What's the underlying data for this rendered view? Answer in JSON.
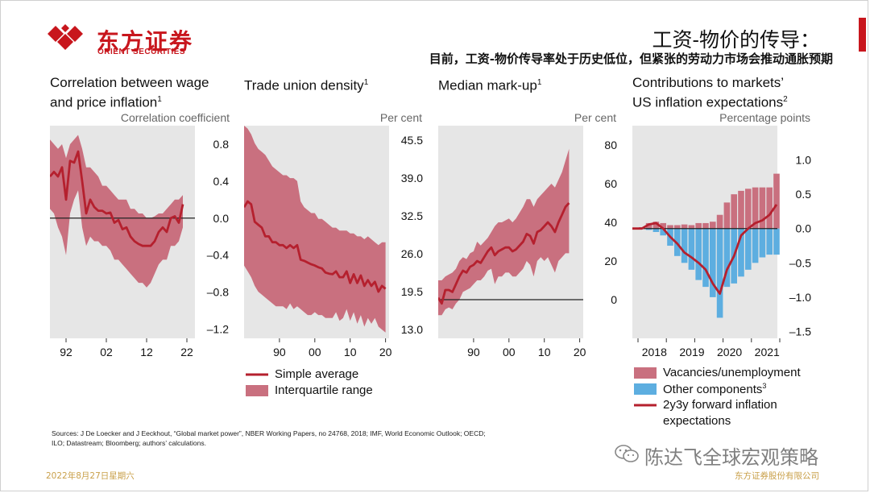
{
  "header": {
    "logo_cn": "东方证券",
    "logo_en": "ORIENT SECURITIES",
    "title": "工资-物价的传导：",
    "subtitle": "目前，工资-物价传导率处于历史低位，但紧张的劳动力市场会推动通胀预期"
  },
  "legends": {
    "mid": [
      "Simple average",
      "Interquartile range"
    ],
    "right": [
      "Vacancies/unemployment",
      "Other components",
      "2y3y forward inflation",
      "expectations"
    ],
    "right_sup": "3"
  },
  "footer": {
    "sources_line1": "Sources: J De Loecker and J Eeckhout, “Global market power”, NBER Working Papers, no 24768, 2018; IMF, World Economic Outlook; OECD;",
    "sources_line2": "ILO; Datastream; Bloomberg; authors’ calculations.",
    "date": "2022年8月27日星期六",
    "company": "东方证券股份有限公司",
    "watermark": "陈达飞全球宏观策略"
  },
  "colors": {
    "band": "#c9707f",
    "line": "#b5202e",
    "bar_blue": "#5daee0",
    "panel_bg": "#e6e6e6",
    "brand": "#c8161d"
  },
  "chart_data": [
    {
      "type": "line",
      "title": "Correlation between wage and price inflation",
      "title_lines": [
        "Correlation between wage",
        "and price inflation"
      ],
      "title_sup": "1",
      "unit": "Correlation coefficient",
      "ylim": [
        -1.3,
        1.0
      ],
      "yticks": [
        0.8,
        0.4,
        0.0,
        -0.4,
        -0.8,
        -1.2
      ],
      "ytick_labels": [
        "0.8",
        "0.4",
        "0.0",
        "–0.4",
        "–0.8",
        "–1.2"
      ],
      "xlim": [
        1988,
        2024
      ],
      "xticks": [
        1992,
        2002,
        2012,
        2022
      ],
      "xtick_labels": [
        "92",
        "02",
        "12",
        "22"
      ],
      "zero_line": 0,
      "x": [
        1988,
        1989,
        1990,
        1991,
        1992,
        1993,
        1994,
        1995,
        1996,
        1997,
        1998,
        1999,
        2000,
        2001,
        2002,
        2003,
        2004,
        2005,
        2006,
        2007,
        2008,
        2009,
        2010,
        2011,
        2012,
        2013,
        2014,
        2015,
        2016,
        2017,
        2018,
        2019,
        2020,
        2021
      ],
      "mean": [
        0.45,
        0.5,
        0.45,
        0.55,
        0.2,
        0.62,
        0.6,
        0.72,
        0.4,
        0.05,
        0.2,
        0.12,
        0.08,
        0.08,
        0.05,
        0.06,
        -0.05,
        -0.02,
        -0.12,
        -0.1,
        -0.2,
        -0.25,
        -0.28,
        -0.3,
        -0.3,
        -0.3,
        -0.25,
        -0.15,
        -0.1,
        -0.15,
        0.0,
        0.02,
        -0.05,
        0.15
      ],
      "upper": [
        0.85,
        0.8,
        0.75,
        0.8,
        0.65,
        0.8,
        0.85,
        0.9,
        0.75,
        0.55,
        0.55,
        0.5,
        0.45,
        0.35,
        0.35,
        0.3,
        0.25,
        0.2,
        0.2,
        0.2,
        0.1,
        0.1,
        0.05,
        0.05,
        0.0,
        0.0,
        0.02,
        0.05,
        0.05,
        0.1,
        0.15,
        0.2,
        0.2,
        0.25
      ],
      "lower": [
        0.1,
        0.05,
        -0.1,
        -0.2,
        -0.4,
        0.05,
        0.2,
        0.3,
        -0.1,
        -0.3,
        -0.2,
        -0.25,
        -0.25,
        -0.3,
        -0.3,
        -0.35,
        -0.45,
        -0.45,
        -0.5,
        -0.55,
        -0.6,
        -0.65,
        -0.7,
        -0.7,
        -0.75,
        -0.7,
        -0.6,
        -0.5,
        -0.45,
        -0.45,
        -0.3,
        -0.3,
        -0.25,
        -0.1
      ]
    },
    {
      "type": "line",
      "title": "Trade union density",
      "title_lines": [
        "Trade union density"
      ],
      "title_sup": "1",
      "unit": "Per cent",
      "ylim": [
        11.5,
        48.0
      ],
      "yticks": [
        45.5,
        39.0,
        32.5,
        26.0,
        19.5,
        13.0
      ],
      "ytick_labels": [
        "45.5",
        "39.0",
        "32.5",
        "26.0",
        "19.5",
        "13.0"
      ],
      "xlim": [
        1980,
        2021
      ],
      "xticks": [
        1990,
        2000,
        2010,
        2020
      ],
      "xtick_labels": [
        "90",
        "00",
        "10",
        "20"
      ],
      "x": [
        1980,
        1981,
        1982,
        1983,
        1984,
        1985,
        1986,
        1987,
        1988,
        1989,
        1990,
        1991,
        1992,
        1993,
        1994,
        1995,
        1996,
        1997,
        1998,
        1999,
        2000,
        2001,
        2002,
        2003,
        2004,
        2005,
        2006,
        2007,
        2008,
        2009,
        2010,
        2011,
        2012,
        2013,
        2014,
        2015,
        2016,
        2017,
        2018,
        2019,
        2020
      ],
      "mean": [
        34.0,
        35.0,
        34.5,
        31.5,
        31.0,
        30.5,
        29.0,
        29.0,
        28.0,
        28.0,
        27.5,
        27.5,
        27.0,
        27.5,
        27.0,
        27.5,
        25.0,
        24.8,
        24.5,
        24.2,
        24.0,
        23.7,
        23.5,
        22.8,
        22.6,
        22.5,
        23.0,
        22.0,
        22.0,
        23.0,
        21.0,
        22.5,
        21.0,
        22.3,
        20.5,
        21.5,
        20.5,
        21.2,
        19.5,
        20.5,
        20.0
      ],
      "upper": [
        48.0,
        47.5,
        46.5,
        45.0,
        44.0,
        43.5,
        43.0,
        42.0,
        41.0,
        40.5,
        40.0,
        39.5,
        39.5,
        39.0,
        39.0,
        38.5,
        35.0,
        34.0,
        33.5,
        33.0,
        33.0,
        32.0,
        32.0,
        31.5,
        31.0,
        30.5,
        30.5,
        30.0,
        30.0,
        30.0,
        29.5,
        29.5,
        29.0,
        29.0,
        28.5,
        29.0,
        28.5,
        28.0,
        27.5,
        28.0,
        28.0
      ],
      "lower": [
        24.0,
        23.0,
        22.0,
        20.5,
        19.5,
        19.0,
        18.5,
        18.0,
        17.5,
        17.0,
        17.0,
        17.0,
        16.5,
        17.5,
        16.5,
        17.0,
        16.5,
        16.0,
        15.5,
        15.5,
        16.0,
        15.5,
        15.5,
        15.0,
        15.0,
        15.0,
        16.0,
        14.5,
        15.0,
        16.5,
        14.5,
        16.0,
        14.0,
        15.5,
        13.5,
        15.0,
        14.0,
        15.0,
        13.5,
        13.0,
        12.5
      ]
    },
    {
      "type": "line",
      "title": "Median mark-up",
      "title_lines": [
        "Median mark-up"
      ],
      "title_sup": "1",
      "unit": "Per cent",
      "ylim": [
        -20,
        90
      ],
      "yticks": [
        80,
        60,
        40,
        20,
        0
      ],
      "ytick_labels": [
        "80",
        "60",
        "40",
        "20",
        "0"
      ],
      "xlim": [
        1980,
        2021
      ],
      "xticks": [
        1990,
        2000,
        2010,
        2020
      ],
      "xtick_labels": [
        "90",
        "00",
        "10",
        "20"
      ],
      "zero_line": 0,
      "x": [
        1980,
        1981,
        1982,
        1983,
        1984,
        1985,
        1986,
        1987,
        1988,
        1989,
        1990,
        1991,
        1992,
        1993,
        1994,
        1995,
        1996,
        1997,
        1998,
        1999,
        2000,
        2001,
        2002,
        2003,
        2004,
        2005,
        2006,
        2007,
        2008,
        2009,
        2010,
        2011,
        2012,
        2013,
        2014,
        2015,
        2016,
        2017
      ],
      "mean": [
        1,
        -2,
        5,
        5,
        4,
        8,
        12,
        15,
        14,
        17,
        18,
        20,
        19,
        22,
        25,
        27,
        23,
        25,
        26,
        27,
        27,
        25,
        26,
        28,
        30,
        34,
        33,
        29,
        35,
        36,
        38,
        40,
        38,
        35,
        40,
        44,
        48,
        50
      ],
      "upper": [
        10,
        10,
        12,
        13,
        14,
        16,
        20,
        22,
        21,
        24,
        25,
        30,
        28,
        30,
        32,
        35,
        38,
        40,
        40,
        41,
        42,
        40,
        42,
        45,
        48,
        52,
        52,
        48,
        52,
        54,
        56,
        58,
        60,
        58,
        62,
        66,
        72,
        78
      ],
      "lower": [
        -8,
        -8,
        -5,
        -4,
        -5,
        -2,
        0,
        4,
        5,
        6,
        8,
        10,
        10,
        12,
        15,
        16,
        8,
        12,
        12,
        14,
        14,
        12,
        12,
        14,
        16,
        20,
        18,
        12,
        20,
        22,
        20,
        22,
        18,
        14,
        20,
        22,
        24,
        24
      ]
    },
    {
      "type": "bar",
      "title": "Contributions to markets’ US inflation expectations",
      "title_lines": [
        "Contributions to markets’",
        "US inflation expectations"
      ],
      "title_sup": "2",
      "unit": "Percentage points",
      "ylim": [
        -1.6,
        1.5
      ],
      "yticks": [
        1.0,
        0.5,
        0.0,
        -0.5,
        -1.0,
        -1.5
      ],
      "ytick_labels": [
        "1.0",
        "0.5",
        "0.0",
        "–0.5",
        "–1.0",
        "–1.5"
      ],
      "xtick_labels": [
        "2018",
        "2019",
        "2020",
        "2021"
      ],
      "series": [
        {
          "name": "Vacancies/unemployment",
          "values": [
            0.02,
            0.08,
            0.1,
            0.08,
            0.05,
            0.05,
            0.06,
            0.05,
            0.08,
            0.08,
            0.1,
            0.2,
            0.38,
            0.5,
            0.55,
            0.58,
            0.6,
            0.6,
            0.6,
            0.8
          ]
        },
        {
          "name": "Other components",
          "values": [
            0.0,
            -0.02,
            -0.05,
            -0.1,
            -0.25,
            -0.4,
            -0.5,
            -0.6,
            -0.75,
            -0.85,
            -1.0,
            -1.3,
            -0.85,
            -0.8,
            -0.7,
            -0.6,
            -0.5,
            -0.42,
            -0.38,
            -0.38
          ]
        },
        {
          "name": "2y3y forward inflation expectations",
          "values": [
            0.0,
            0.06,
            0.08,
            0.0,
            -0.12,
            -0.22,
            -0.35,
            -0.42,
            -0.5,
            -0.6,
            -0.8,
            -0.95,
            -0.6,
            -0.4,
            -0.1,
            0.0,
            0.08,
            0.12,
            0.2,
            0.35
          ]
        }
      ]
    }
  ]
}
